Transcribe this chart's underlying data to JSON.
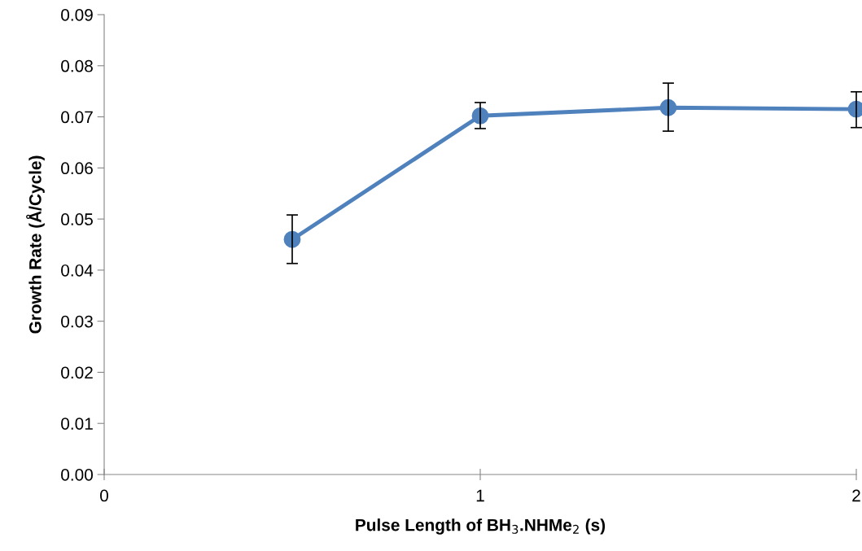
{
  "chart_data": {
    "type": "line",
    "xlabel": "Pulse Length of BH$_{3}$.NHMe$_{2}$ (s)",
    "ylabel": "Growth Rate (Å/Cycle)",
    "x": [
      0.5,
      1,
      1.5,
      2
    ],
    "series": [
      {
        "color": "#4f81bd",
        "values": [
          0.046,
          0.0702,
          0.0718,
          0.0715
        ],
        "errors": [
          [
            0.0413,
            0.0508
          ],
          [
            0.0677,
            0.0728
          ],
          [
            0.0672,
            0.0766
          ],
          [
            0.0679,
            0.0749
          ]
        ]
      }
    ],
    "xlim": [
      0,
      2
    ],
    "xticks": [
      0,
      1,
      2
    ],
    "ylim": [
      0,
      0.09
    ],
    "yticks": [
      {
        "value": 0,
        "label": "0.00"
      },
      {
        "value": 0.01,
        "label": "0.01"
      },
      {
        "value": 0.02,
        "label": "0.02"
      },
      {
        "value": 0.03,
        "label": "0.03"
      },
      {
        "value": 0.04,
        "label": "0.04"
      },
      {
        "value": 0.05,
        "label": "0.05"
      },
      {
        "value": 0.06,
        "label": "0.06"
      },
      {
        "value": 0.07,
        "label": "0.07"
      },
      {
        "value": 0.08,
        "label": "0.08"
      },
      {
        "value": 0.09,
        "label": "0.09"
      }
    ],
    "marker": "circle",
    "line_style": "solid",
    "grid": false,
    "legend": false
  }
}
